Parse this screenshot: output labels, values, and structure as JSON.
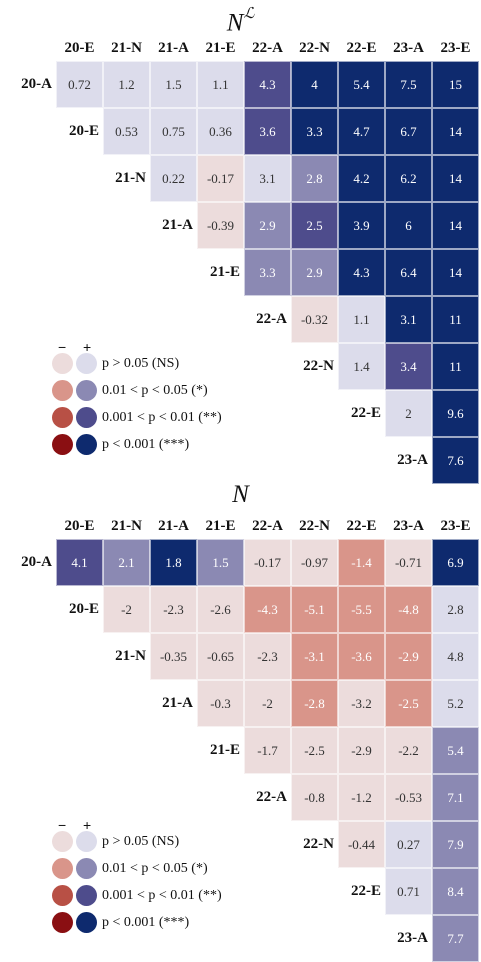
{
  "chart_data": [
    {
      "type": "heatmap",
      "title": "N^L",
      "title_base": "N",
      "title_sup": "ℒ",
      "columns": [
        "20-E",
        "21-N",
        "21-A",
        "21-E",
        "22-A",
        "22-N",
        "22-E",
        "23-A",
        "23-E"
      ],
      "rows": [
        "20-A",
        "20-E",
        "21-N",
        "21-A",
        "21-E",
        "22-A",
        "22-N",
        "22-E",
        "23-A"
      ],
      "values": [
        [
          0.72,
          1.2,
          1.5,
          1.1,
          4.3,
          4,
          5.4,
          7.5,
          15
        ],
        [
          null,
          0.53,
          0.75,
          0.36,
          3.6,
          3.3,
          4.7,
          6.7,
          14
        ],
        [
          null,
          null,
          0.22,
          -0.17,
          3.1,
          2.8,
          4.2,
          6.2,
          14
        ],
        [
          null,
          null,
          null,
          -0.39,
          2.9,
          2.5,
          3.9,
          6,
          14
        ],
        [
          null,
          null,
          null,
          null,
          3.3,
          2.9,
          4.3,
          6.4,
          14
        ],
        [
          null,
          null,
          null,
          null,
          null,
          -0.32,
          1.1,
          3.1,
          11
        ],
        [
          null,
          null,
          null,
          null,
          null,
          null,
          1.4,
          3.4,
          11
        ],
        [
          null,
          null,
          null,
          null,
          null,
          null,
          null,
          2,
          9.6
        ],
        [
          null,
          null,
          null,
          null,
          null,
          null,
          null,
          null,
          7.6
        ]
      ],
      "significance_level": [
        [
          0,
          0,
          0,
          0,
          2,
          3,
          3,
          3,
          3
        ],
        [
          null,
          0,
          0,
          0,
          2,
          3,
          3,
          3,
          3
        ],
        [
          null,
          null,
          0,
          0,
          0,
          1,
          3,
          3,
          3
        ],
        [
          null,
          null,
          null,
          0,
          1,
          2,
          3,
          3,
          3
        ],
        [
          null,
          null,
          null,
          null,
          1,
          1,
          3,
          3,
          3
        ],
        [
          null,
          null,
          null,
          null,
          null,
          0,
          0,
          3,
          3
        ],
        [
          null,
          null,
          null,
          null,
          null,
          null,
          0,
          2,
          3
        ],
        [
          null,
          null,
          null,
          null,
          null,
          null,
          null,
          0,
          3
        ],
        [
          null,
          null,
          null,
          null,
          null,
          null,
          null,
          null,
          3
        ]
      ]
    },
    {
      "type": "heatmap",
      "title": "N",
      "title_base": "N",
      "title_sup": "",
      "columns": [
        "20-E",
        "21-N",
        "21-A",
        "21-E",
        "22-A",
        "22-N",
        "22-E",
        "23-A",
        "23-E"
      ],
      "rows": [
        "20-A",
        "20-E",
        "21-N",
        "21-A",
        "21-E",
        "22-A",
        "22-N",
        "22-E",
        "23-A"
      ],
      "values": [
        [
          4.1,
          2.1,
          1.8,
          1.5,
          -0.17,
          -0.97,
          -1.4,
          -0.71,
          6.9
        ],
        [
          null,
          -2,
          -2.3,
          -2.6,
          -4.3,
          -5.1,
          -5.5,
          -4.8,
          2.8
        ],
        [
          null,
          null,
          -0.35,
          -0.65,
          -2.3,
          -3.1,
          -3.6,
          -2.9,
          4.8
        ],
        [
          null,
          null,
          null,
          -0.3,
          -2,
          -2.8,
          -3.2,
          -2.5,
          5.2
        ],
        [
          null,
          null,
          null,
          null,
          -1.7,
          -2.5,
          -2.9,
          -2.2,
          5.4
        ],
        [
          null,
          null,
          null,
          null,
          null,
          -0.8,
          -1.2,
          -0.53,
          7.1
        ],
        [
          null,
          null,
          null,
          null,
          null,
          null,
          -0.44,
          0.27,
          7.9
        ],
        [
          null,
          null,
          null,
          null,
          null,
          null,
          null,
          0.71,
          8.4
        ],
        [
          null,
          null,
          null,
          null,
          null,
          null,
          null,
          null,
          7.7
        ]
      ],
      "significance_level": [
        [
          2,
          1,
          3,
          1,
          0,
          0,
          1,
          0,
          3
        ],
        [
          null,
          0,
          0,
          0,
          1,
          1,
          1,
          1,
          0
        ],
        [
          null,
          null,
          0,
          0,
          0,
          1,
          1,
          1,
          0
        ],
        [
          null,
          null,
          null,
          0,
          0,
          1,
          0,
          1,
          0
        ],
        [
          null,
          null,
          null,
          null,
          0,
          0,
          0,
          0,
          1
        ],
        [
          null,
          null,
          null,
          null,
          null,
          0,
          0,
          0,
          1
        ],
        [
          null,
          null,
          null,
          null,
          null,
          null,
          0,
          0,
          1
        ],
        [
          null,
          null,
          null,
          null,
          null,
          null,
          null,
          0,
          1
        ],
        [
          null,
          null,
          null,
          null,
          null,
          null,
          null,
          null,
          1
        ]
      ]
    }
  ],
  "colors": {
    "negative": [
      "#ecdcdc",
      "#d9958a",
      "#b85045",
      "#8a0f12"
    ],
    "positive": [
      "#dcdceb",
      "#8b89b3",
      "#4e4c8c",
      "#0e2a6e"
    ]
  },
  "legend": {
    "minus_label": "−",
    "plus_label": "+",
    "items": [
      {
        "label": "p > 0.05 (NS)"
      },
      {
        "label": "0.01 < p < 0.05 (*)"
      },
      {
        "label": "0.001 < p < 0.01 (**)"
      },
      {
        "label": "p < 0.001 (***)"
      }
    ]
  }
}
